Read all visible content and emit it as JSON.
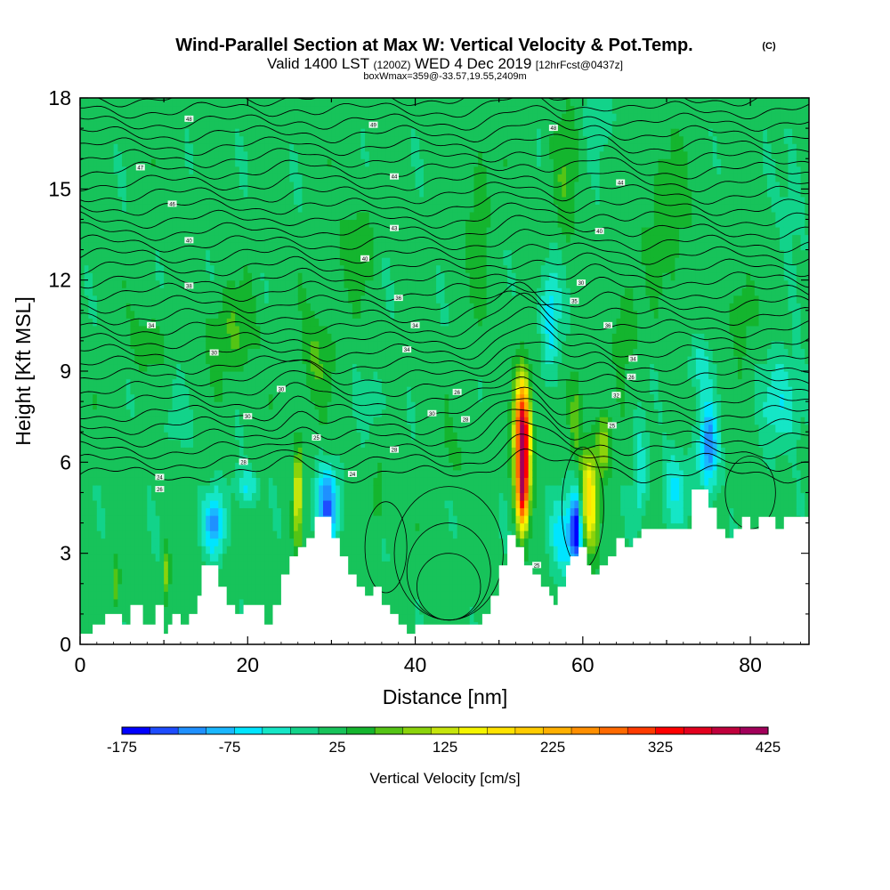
{
  "chart_data": {
    "type": "heatmap",
    "title": "Wind-Parallel Section at Max W: Vertical Velocity & Pot.Temp.",
    "title_mark": "(C)",
    "subtitle": {
      "valid": "Valid 1400 LST",
      "utc": "(1200Z)",
      "date": "WED 4 Dec 2019",
      "forecast": "[12hrFcst@0437z]"
    },
    "boxline": "boxWmax=359@-33.57,19.55,2409m",
    "xlabel": "Distance [nm]",
    "ylabel": "Height [Kft MSL]",
    "xlim": [
      0,
      87
    ],
    "ylim": [
      0,
      18
    ],
    "xticks": [
      0,
      20,
      40,
      60,
      80
    ],
    "yticks": [
      0,
      3,
      6,
      9,
      12,
      15,
      18
    ],
    "colorbar": {
      "label": "Vertical Velocity [cm/s]",
      "range": [
        -175,
        425
      ],
      "tick_labels": [
        "-175",
        "-75",
        "25",
        "125",
        "225",
        "325",
        "425"
      ],
      "colors": [
        "#0000ff",
        "#1e4cff",
        "#1f90ff",
        "#1ab7ff",
        "#00e5ff",
        "#15e6c6",
        "#12d38a",
        "#17c35a",
        "#14b52e",
        "#54c415",
        "#8bd30b",
        "#c6e50c",
        "#f5f500",
        "#ffe300",
        "#ffcc00",
        "#ffb000",
        "#ff8f00",
        "#ff6a00",
        "#ff3b00",
        "#ff0000",
        "#e3001e",
        "#c0003c",
        "#a2005a"
      ]
    },
    "terrain": [
      [
        0,
        0.35
      ],
      [
        1.5,
        0.35
      ],
      [
        1.5,
        0.65
      ],
      [
        3,
        0.65
      ],
      [
        3,
        1.0
      ],
      [
        5,
        1.0
      ],
      [
        5,
        0.65
      ],
      [
        6,
        0.65
      ],
      [
        6,
        1.3
      ],
      [
        7.5,
        1.3
      ],
      [
        7.5,
        0.65
      ],
      [
        9,
        0.65
      ],
      [
        9,
        1.3
      ],
      [
        10,
        1.3
      ],
      [
        10,
        0.35
      ],
      [
        10.5,
        0.35
      ],
      [
        10.5,
        0.65
      ],
      [
        11,
        0.65
      ],
      [
        11,
        1.0
      ],
      [
        12,
        1.0
      ],
      [
        12,
        0.65
      ],
      [
        13,
        0.65
      ],
      [
        13,
        1.0
      ],
      [
        14,
        1.0
      ],
      [
        14,
        1.6
      ],
      [
        14.5,
        1.6
      ],
      [
        14.5,
        2.6
      ],
      [
        16.5,
        2.6
      ],
      [
        16.5,
        1.9
      ],
      [
        17.5,
        1.9
      ],
      [
        17.5,
        1.3
      ],
      [
        18.5,
        1.3
      ],
      [
        18.5,
        1.0
      ],
      [
        19.5,
        1.0
      ],
      [
        19.5,
        1.3
      ],
      [
        22,
        1.3
      ],
      [
        22,
        0.65
      ],
      [
        23,
        0.65
      ],
      [
        23,
        1.3
      ],
      [
        24,
        1.3
      ],
      [
        24,
        2.3
      ],
      [
        25,
        2.3
      ],
      [
        25,
        2.9
      ],
      [
        26,
        2.9
      ],
      [
        26,
        3.2
      ],
      [
        27,
        3.2
      ],
      [
        27,
        3.5
      ],
      [
        28,
        3.5
      ],
      [
        28,
        4.2
      ],
      [
        30,
        4.2
      ],
      [
        30,
        3.5
      ],
      [
        31,
        3.5
      ],
      [
        31,
        2.9
      ],
      [
        32,
        2.9
      ],
      [
        32,
        2.3
      ],
      [
        33,
        2.3
      ],
      [
        33,
        1.9
      ],
      [
        34,
        1.9
      ],
      [
        34,
        1.6
      ],
      [
        35,
        1.6
      ],
      [
        35,
        1.9
      ],
      [
        36,
        1.9
      ],
      [
        36,
        1.3
      ],
      [
        37,
        1.3
      ],
      [
        37,
        1.0
      ],
      [
        38,
        1.0
      ],
      [
        38,
        0.65
      ],
      [
        39,
        0.65
      ],
      [
        39,
        0.35
      ],
      [
        40,
        0.35
      ],
      [
        40,
        0.65
      ],
      [
        41,
        0.65
      ],
      [
        41,
        0.65
      ],
      [
        48,
        0.65
      ],
      [
        48,
        1.0
      ],
      [
        49,
        1.0
      ],
      [
        49,
        1.6
      ],
      [
        50,
        1.6
      ],
      [
        50,
        2.6
      ],
      [
        51,
        2.6
      ],
      [
        51,
        3.6
      ],
      [
        52,
        3.6
      ],
      [
        52,
        3.2
      ],
      [
        53,
        3.2
      ],
      [
        53,
        2.6
      ],
      [
        54,
        2.6
      ],
      [
        54,
        2.3
      ],
      [
        55,
        2.3
      ],
      [
        55,
        1.9
      ],
      [
        56,
        1.9
      ],
      [
        56,
        1.6
      ],
      [
        56.5,
        1.6
      ],
      [
        56.5,
        1.3
      ],
      [
        57,
        1.3
      ],
      [
        57,
        1.9
      ],
      [
        58,
        1.9
      ],
      [
        58,
        2.6
      ],
      [
        58.5,
        2.6
      ],
      [
        58.5,
        2.9
      ],
      [
        59.5,
        2.9
      ],
      [
        59.5,
        3.2
      ],
      [
        60.5,
        3.2
      ],
      [
        60.5,
        2.6
      ],
      [
        61,
        2.6
      ],
      [
        61,
        2.3
      ],
      [
        62,
        2.3
      ],
      [
        62,
        2.6
      ],
      [
        63,
        2.6
      ],
      [
        63,
        2.9
      ],
      [
        64,
        2.9
      ],
      [
        64,
        3.5
      ],
      [
        65,
        3.5
      ],
      [
        65,
        3.2
      ],
      [
        66,
        3.2
      ],
      [
        66,
        3.5
      ],
      [
        67,
        3.5
      ],
      [
        67,
        3.8
      ],
      [
        73,
        3.8
      ],
      [
        73,
        5.1
      ],
      [
        75,
        5.1
      ],
      [
        75,
        4.5
      ],
      [
        76,
        4.5
      ],
      [
        76,
        3.8
      ],
      [
        77,
        3.8
      ],
      [
        77,
        3.5
      ],
      [
        78,
        3.5
      ],
      [
        78,
        3.8
      ],
      [
        79,
        3.8
      ],
      [
        79,
        4.2
      ],
      [
        80,
        4.2
      ],
      [
        80,
        3.8
      ],
      [
        81,
        3.8
      ],
      [
        81,
        4.2
      ],
      [
        83,
        4.2
      ],
      [
        83,
        3.8
      ],
      [
        84,
        3.8
      ],
      [
        84,
        4.2
      ],
      [
        87,
        4.2
      ]
    ],
    "cells": [
      {
        "x": 52.8,
        "z": 7.0,
        "sx": 0.9,
        "sz": 1.7,
        "w": 380
      },
      {
        "x": 52.8,
        "z": 5.0,
        "sx": 0.7,
        "sz": 1.2,
        "w": 300
      },
      {
        "x": 60.8,
        "z": 4.8,
        "sx": 1.0,
        "sz": 1.7,
        "w": 160
      },
      {
        "x": 62.5,
        "z": 6.6,
        "sx": 0.8,
        "sz": 1.0,
        "w": 90
      },
      {
        "x": 26.0,
        "z": 5.0,
        "sx": 0.45,
        "sz": 1.5,
        "w": 140
      },
      {
        "x": 10.3,
        "z": 2.3,
        "sx": 0.35,
        "sz": 0.8,
        "w": 85
      },
      {
        "x": 4.3,
        "z": 2.0,
        "sx": 0.35,
        "sz": 0.7,
        "w": 75
      },
      {
        "x": 16.0,
        "z": 4.0,
        "sx": 1.2,
        "sz": 1.0,
        "w": -120
      },
      {
        "x": 29.5,
        "z": 4.6,
        "sx": 1.3,
        "sz": 1.2,
        "w": -140
      },
      {
        "x": 59.2,
        "z": 3.8,
        "sx": 0.6,
        "sz": 1.2,
        "w": -170
      },
      {
        "x": 58.0,
        "z": 3.6,
        "sx": 2.0,
        "sz": 1.3,
        "w": -80
      },
      {
        "x": 75.0,
        "z": 6.5,
        "sx": 1.1,
        "sz": 1.5,
        "w": -130
      },
      {
        "x": 56.2,
        "z": 10.8,
        "sx": 1.2,
        "sz": 1.8,
        "w": -75
      },
      {
        "x": 19.8,
        "z": 5.2,
        "sx": 1.5,
        "sz": 0.6,
        "w": -65
      },
      {
        "x": 71.0,
        "z": 5.2,
        "sx": 1.6,
        "sz": 1.3,
        "w": -60
      },
      {
        "x": 66.8,
        "z": 5.5,
        "sx": 0.8,
        "sz": 1.5,
        "w": -65
      },
      {
        "x": 35.0,
        "z": 8.0,
        "sx": 1.6,
        "sz": 0.8,
        "w": -30
      },
      {
        "x": 84.0,
        "z": 8.0,
        "sx": 2.5,
        "sz": 1.5,
        "w": -60
      },
      {
        "x": 74.0,
        "z": 9.2,
        "sx": 1.5,
        "sz": 0.8,
        "w": -45
      },
      {
        "x": 59.2,
        "z": 7.5,
        "sx": 0.7,
        "sz": 1.4,
        "w": 55
      },
      {
        "x": 65.0,
        "z": 10.5,
        "sx": 1.2,
        "sz": 1.4,
        "w": 45
      },
      {
        "x": 28.2,
        "z": 9.5,
        "sx": 1.8,
        "sz": 1.6,
        "w": 45
      },
      {
        "x": 18.0,
        "z": 10.2,
        "sx": 3.0,
        "sz": 1.5,
        "w": 40
      },
      {
        "x": 8.0,
        "z": 10.0,
        "sx": 2.0,
        "sz": 1.0,
        "w": 30
      },
      {
        "x": 33.0,
        "z": 13.0,
        "sx": 2.0,
        "sz": 1.5,
        "w": 35
      },
      {
        "x": 47.5,
        "z": 14.0,
        "sx": 1.2,
        "sz": 3.0,
        "w": 35
      },
      {
        "x": 58.0,
        "z": 15.5,
        "sx": 1.5,
        "sz": 2.5,
        "w": 35
      },
      {
        "x": 70.0,
        "z": 14.0,
        "sx": 2.5,
        "sz": 2.5,
        "w": 35
      },
      {
        "x": 79.0,
        "z": 11.0,
        "sx": 1.5,
        "sz": 1.5,
        "w": 35
      },
      {
        "x": 62.0,
        "z": 17.4,
        "sx": 1.5,
        "sz": 1.0,
        "w": -35
      },
      {
        "x": 85.0,
        "z": 15.0,
        "sx": 1.5,
        "sz": 2.0,
        "w": -25
      },
      {
        "x": 45.0,
        "z": 6.3,
        "sx": 4.0,
        "sz": 1.0,
        "w": 15
      },
      {
        "x": 35.5,
        "z": 4.8,
        "sx": 0.8,
        "sz": 1.0,
        "w": 38
      },
      {
        "x": 11.5,
        "z": 7.5,
        "sx": 1.5,
        "sz": 1.0,
        "w": -20
      }
    ],
    "theta_base": 5.6,
    "theta_levels": 32,
    "theta_spacing": 0.4,
    "contour_labels": [
      {
        "x": 13,
        "z": 17.3,
        "text": "48"
      },
      {
        "x": 35,
        "z": 17.1,
        "text": "49"
      },
      {
        "x": 56.5,
        "z": 17.0,
        "text": "48"
      },
      {
        "x": 7.2,
        "z": 15.7,
        "text": "47"
      },
      {
        "x": 37.5,
        "z": 15.4,
        "text": "44"
      },
      {
        "x": 64.5,
        "z": 15.2,
        "text": "44"
      },
      {
        "x": 11,
        "z": 14.5,
        "text": "46"
      },
      {
        "x": 37.5,
        "z": 13.7,
        "text": "43"
      },
      {
        "x": 62,
        "z": 13.6,
        "text": "40"
      },
      {
        "x": 13,
        "z": 13.3,
        "text": "40"
      },
      {
        "x": 34,
        "z": 12.7,
        "text": "40"
      },
      {
        "x": 13,
        "z": 11.8,
        "text": "38"
      },
      {
        "x": 38,
        "z": 11.4,
        "text": "36"
      },
      {
        "x": 59.8,
        "z": 11.9,
        "text": "30"
      },
      {
        "x": 59,
        "z": 11.3,
        "text": "35"
      },
      {
        "x": 8.5,
        "z": 10.5,
        "text": "34"
      },
      {
        "x": 40,
        "z": 10.5,
        "text": "34"
      },
      {
        "x": 63,
        "z": 10.5,
        "text": "36"
      },
      {
        "x": 16,
        "z": 9.6,
        "text": "30"
      },
      {
        "x": 39,
        "z": 9.7,
        "text": "34"
      },
      {
        "x": 66,
        "z": 9.4,
        "text": "34"
      },
      {
        "x": 24,
        "z": 8.4,
        "text": "30"
      },
      {
        "x": 45,
        "z": 8.3,
        "text": "26"
      },
      {
        "x": 65.8,
        "z": 8.8,
        "text": "26"
      },
      {
        "x": 64,
        "z": 8.2,
        "text": "32"
      },
      {
        "x": 20,
        "z": 7.5,
        "text": "30"
      },
      {
        "x": 42,
        "z": 7.6,
        "text": "30"
      },
      {
        "x": 46,
        "z": 7.4,
        "text": "28"
      },
      {
        "x": 63.5,
        "z": 7.2,
        "text": "25"
      },
      {
        "x": 28.2,
        "z": 6.8,
        "text": "25"
      },
      {
        "x": 37.5,
        "z": 6.4,
        "text": "28"
      },
      {
        "x": 19.5,
        "z": 6.0,
        "text": "28"
      },
      {
        "x": 32.5,
        "z": 5.6,
        "text": "24"
      },
      {
        "x": 9.5,
        "z": 5.5,
        "text": "24"
      },
      {
        "x": 9.5,
        "z": 5.1,
        "text": "26"
      },
      {
        "x": 54.5,
        "z": 2.6,
        "text": "25"
      }
    ]
  }
}
